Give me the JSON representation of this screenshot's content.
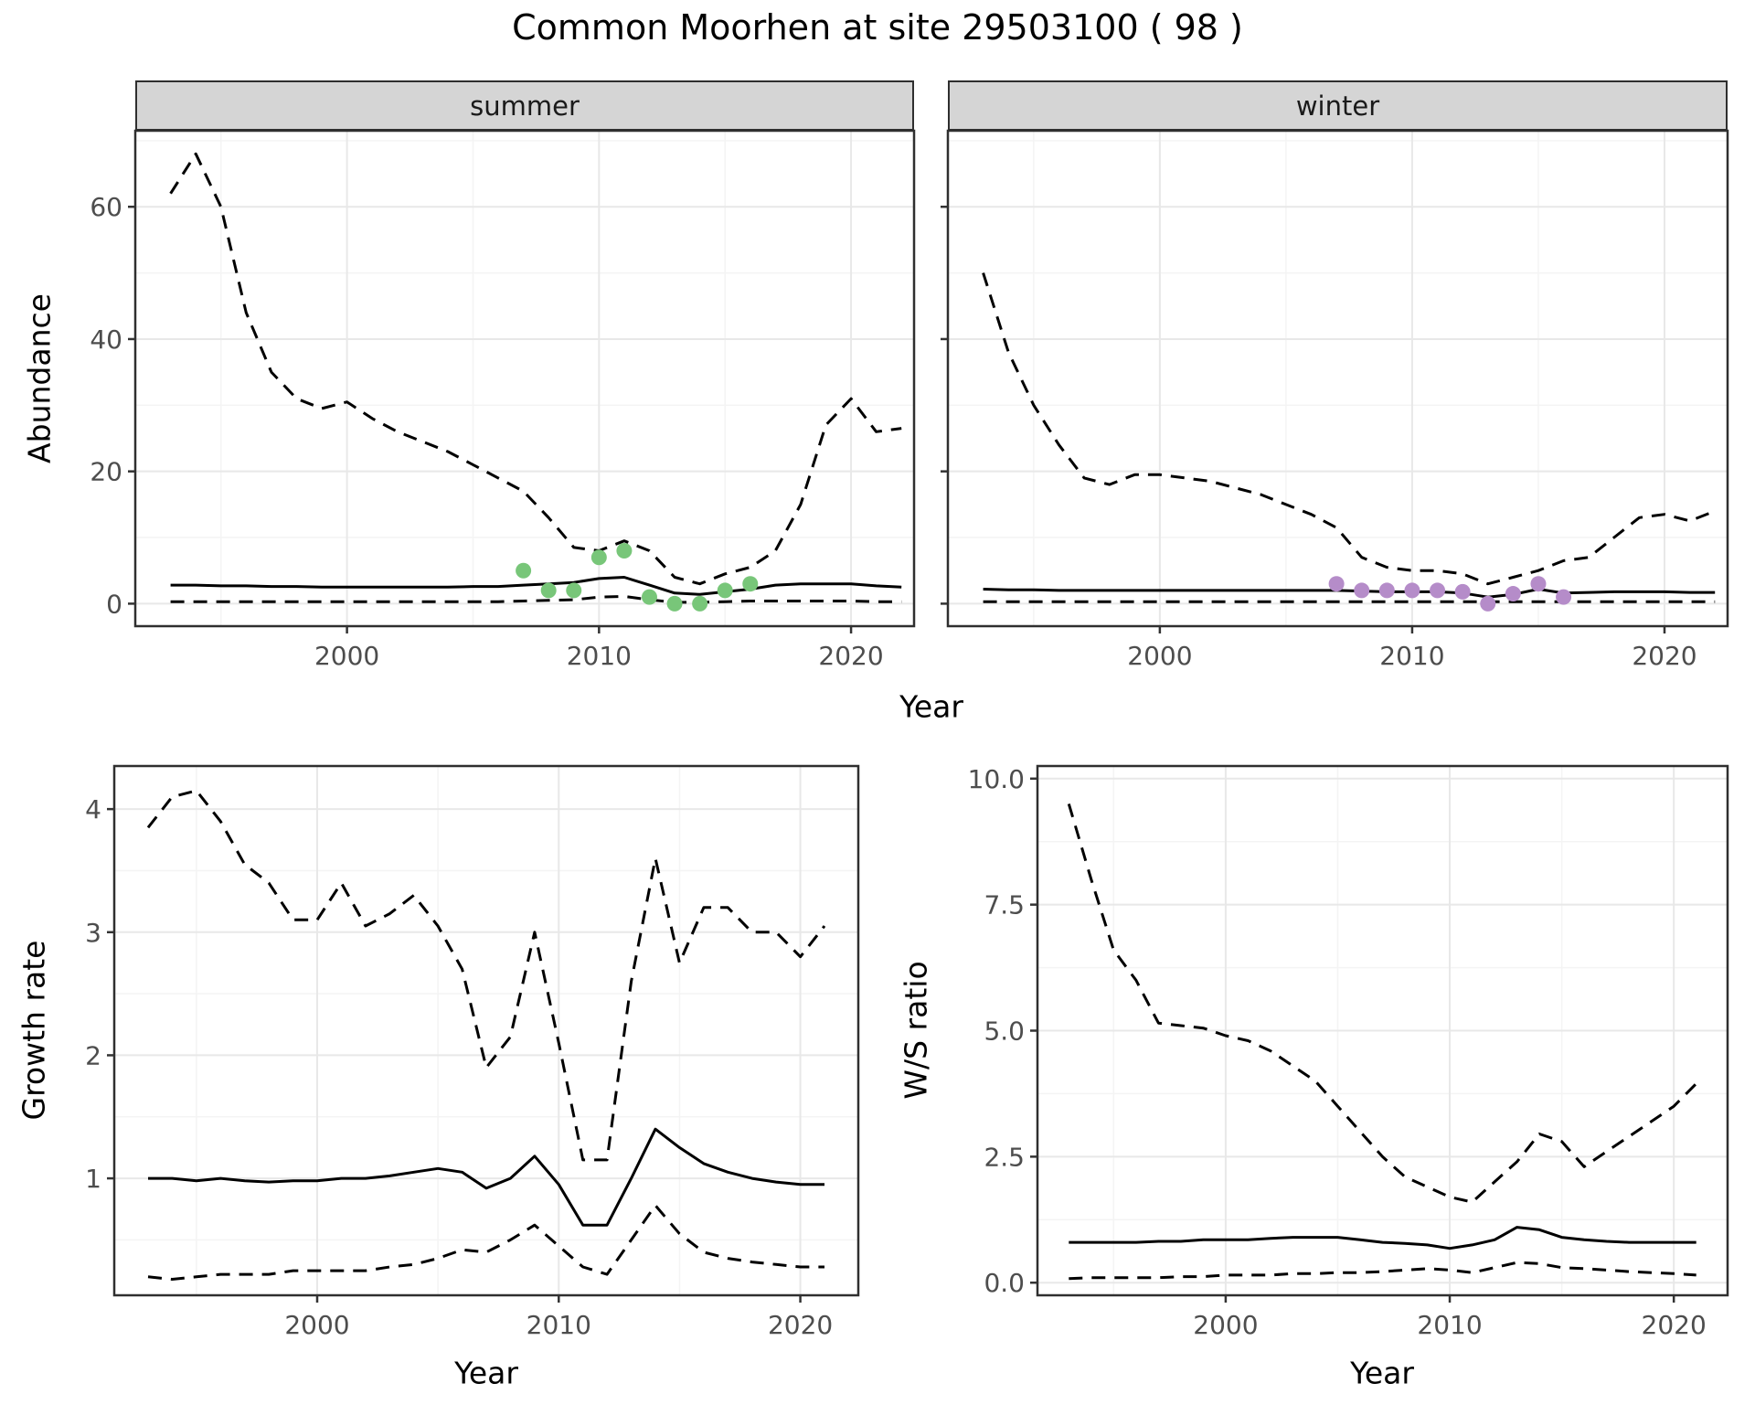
{
  "title": "Common Moorhen at site 29503100 ( 98 )",
  "facets": {
    "summer": "summer",
    "winter": "winter"
  },
  "axes": {
    "top": {
      "x_label": "Year",
      "y_label": "Abundance"
    },
    "bottom_left": {
      "x_label": "Year",
      "y_label": "Growth rate"
    },
    "bottom_right": {
      "x_label": "Year",
      "y_label": "W/S ratio"
    }
  },
  "style": {
    "line": "#000000",
    "grid_major": "#e8e8e8",
    "grid_minor": "#f4f4f4",
    "strip_fill": "#d5d5d5",
    "panel_border": "#2f2f2f",
    "summer_points": "#78c679",
    "winter_points": "#b58cc9"
  },
  "chart_data": [
    {
      "id": "abundance-summer",
      "type": "line",
      "facet": "summer",
      "xlabel": "Year",
      "ylabel": "Abundance",
      "xlim": [
        1991.6,
        2022.5
      ],
      "ylim": [
        -3.4,
        71.5
      ],
      "xticks": [
        2000,
        2010,
        2020
      ],
      "yticks": [
        0,
        20,
        40,
        60
      ],
      "xminor": [
        1995,
        2005,
        2015
      ],
      "yminor": [
        10,
        30,
        50,
        70
      ],
      "years": [
        1993,
        1994,
        1995,
        1996,
        1997,
        1998,
        1999,
        2000,
        2001,
        2002,
        2003,
        2004,
        2005,
        2006,
        2007,
        2008,
        2009,
        2010,
        2011,
        2012,
        2013,
        2014,
        2015,
        2016,
        2017,
        2018,
        2019,
        2020,
        2021,
        2022
      ],
      "series": [
        {
          "name": "upper-ci",
          "style": "dashed",
          "y": [
            62,
            68,
            60,
            44,
            35,
            31,
            29.5,
            30.5,
            28,
            26,
            24.5,
            23,
            21,
            19,
            17,
            13,
            8.5,
            8,
            9.5,
            8,
            4,
            3,
            4.5,
            5.5,
            8,
            15,
            27,
            31,
            26,
            26.5
          ]
        },
        {
          "name": "mean",
          "style": "solid",
          "y": [
            2.8,
            2.8,
            2.7,
            2.7,
            2.6,
            2.6,
            2.5,
            2.5,
            2.5,
            2.5,
            2.5,
            2.5,
            2.6,
            2.6,
            2.8,
            3.0,
            3.2,
            3.8,
            4.0,
            2.8,
            1.6,
            1.4,
            1.8,
            2.2,
            2.8,
            3.0,
            3.0,
            3.0,
            2.7,
            2.5
          ]
        },
        {
          "name": "lower-ci",
          "style": "dashed",
          "y": [
            0.3,
            0.3,
            0.3,
            0.3,
            0.3,
            0.3,
            0.3,
            0.3,
            0.3,
            0.3,
            0.3,
            0.3,
            0.3,
            0.3,
            0.4,
            0.5,
            0.6,
            1.0,
            1.1,
            0.6,
            0.2,
            0.2,
            0.3,
            0.4,
            0.4,
            0.4,
            0.4,
            0.4,
            0.3,
            0.3
          ]
        },
        {
          "name": "observations",
          "type": "scatter",
          "color": "#78c679",
          "x": [
            2007,
            2008,
            2009,
            2010,
            2011,
            2012,
            2013,
            2014,
            2015,
            2016
          ],
          "y": [
            5,
            2,
            2,
            7,
            8,
            1,
            0,
            0,
            2,
            3
          ]
        }
      ]
    },
    {
      "id": "abundance-winter",
      "type": "line",
      "facet": "winter",
      "xlabel": "Year",
      "ylabel": "Abundance",
      "show_ytick_labels": false,
      "xlim": [
        1991.6,
        2022.5
      ],
      "ylim": [
        -3.4,
        71.5
      ],
      "xticks": [
        2000,
        2010,
        2020
      ],
      "yticks": [
        0,
        20,
        40,
        60
      ],
      "xminor": [
        1995,
        2005,
        2015
      ],
      "yminor": [
        10,
        30,
        50,
        70
      ],
      "years": [
        1993,
        1994,
        1995,
        1996,
        1997,
        1998,
        1999,
        2000,
        2001,
        2002,
        2003,
        2004,
        2005,
        2006,
        2007,
        2008,
        2009,
        2010,
        2011,
        2012,
        2013,
        2014,
        2015,
        2016,
        2017,
        2018,
        2019,
        2020,
        2021,
        2022
      ],
      "series": [
        {
          "name": "upper-ci",
          "style": "dashed",
          "y": [
            50,
            38,
            30,
            24,
            19,
            18,
            19.5,
            19.5,
            19,
            18.5,
            17.5,
            16.5,
            15,
            13.5,
            11.5,
            7,
            5.5,
            5,
            5,
            4.5,
            3,
            4,
            5,
            6.5,
            7,
            10,
            13,
            13.5,
            12.5,
            14
          ]
        },
        {
          "name": "mean",
          "style": "solid",
          "y": [
            2.2,
            2.1,
            2.1,
            2.0,
            2.0,
            2.0,
            2.0,
            2.0,
            2.0,
            2.0,
            2.0,
            2.0,
            2.0,
            2.0,
            2.0,
            1.9,
            1.8,
            1.8,
            1.8,
            1.6,
            1.0,
            1.4,
            2.2,
            1.6,
            1.7,
            1.8,
            1.8,
            1.8,
            1.7,
            1.7
          ]
        },
        {
          "name": "lower-ci",
          "style": "dashed",
          "y": [
            0.3,
            0.3,
            0.3,
            0.3,
            0.3,
            0.3,
            0.3,
            0.3,
            0.3,
            0.3,
            0.3,
            0.3,
            0.3,
            0.3,
            0.3,
            0.3,
            0.3,
            0.3,
            0.3,
            0.3,
            0.3,
            0.3,
            0.3,
            0.3,
            0.3,
            0.3,
            0.3,
            0.3,
            0.3,
            0.3
          ]
        },
        {
          "name": "observations",
          "type": "scatter",
          "color": "#b58cc9",
          "x": [
            2007,
            2008,
            2009,
            2010,
            2011,
            2012,
            2013,
            2014,
            2015,
            2016
          ],
          "y": [
            3,
            2,
            2,
            2,
            2,
            1.8,
            0,
            1.5,
            3,
            1
          ]
        }
      ]
    },
    {
      "id": "growth-rate",
      "type": "line",
      "xlabel": "Year",
      "ylabel": "Growth rate",
      "xlim": [
        1991.6,
        2022.4
      ],
      "ylim": [
        0.05,
        4.35
      ],
      "xticks": [
        2000,
        2010,
        2020
      ],
      "yticks": [
        1,
        2,
        3,
        4
      ],
      "xminor": [
        1995,
        2005,
        2015
      ],
      "yminor": [
        0.5,
        1.5,
        2.5,
        3.5
      ],
      "years": [
        1993,
        1994,
        1995,
        1996,
        1997,
        1998,
        1999,
        2000,
        2001,
        2002,
        2003,
        2004,
        2005,
        2006,
        2007,
        2008,
        2009,
        2010,
        2011,
        2012,
        2013,
        2014,
        2015,
        2016,
        2017,
        2018,
        2019,
        2020,
        2021
      ],
      "series": [
        {
          "name": "upper-ci",
          "style": "dashed",
          "y": [
            3.85,
            4.1,
            4.15,
            3.9,
            3.55,
            3.4,
            3.1,
            3.1,
            3.4,
            3.05,
            3.15,
            3.3,
            3.05,
            2.7,
            1.9,
            2.15,
            3.0,
            2.1,
            1.15,
            1.15,
            2.6,
            3.6,
            2.75,
            3.2,
            3.2,
            3.0,
            3.0,
            2.8,
            3.05
          ]
        },
        {
          "name": "mean",
          "style": "solid",
          "y": [
            1.0,
            1.0,
            0.98,
            1.0,
            0.98,
            0.97,
            0.98,
            0.98,
            1.0,
            1.0,
            1.02,
            1.05,
            1.08,
            1.05,
            0.92,
            1.0,
            1.18,
            0.95,
            0.62,
            0.62,
            1.0,
            1.4,
            1.25,
            1.12,
            1.05,
            1.0,
            0.97,
            0.95,
            0.95
          ]
        },
        {
          "name": "lower-ci",
          "style": "dashed",
          "y": [
            0.2,
            0.18,
            0.2,
            0.22,
            0.22,
            0.22,
            0.25,
            0.25,
            0.25,
            0.25,
            0.28,
            0.3,
            0.35,
            0.42,
            0.4,
            0.5,
            0.62,
            0.45,
            0.28,
            0.22,
            0.5,
            0.78,
            0.55,
            0.4,
            0.35,
            0.32,
            0.3,
            0.28,
            0.28
          ]
        }
      ]
    },
    {
      "id": "ws-ratio",
      "type": "line",
      "xlabel": "Year",
      "ylabel": "W/S ratio",
      "xlim": [
        1991.6,
        2022.4
      ],
      "ylim": [
        -0.25,
        10.25
      ],
      "xticks": [
        2000,
        2010,
        2020
      ],
      "yticks": [
        0,
        2.5,
        5,
        7.5,
        10
      ],
      "ytick_labels": [
        "0.0",
        "2.5",
        "5.0",
        "7.5",
        "10.0"
      ],
      "xminor": [
        1995,
        2005,
        2015
      ],
      "yminor": [
        1.25,
        3.75,
        6.25,
        8.75
      ],
      "years": [
        1993,
        1994,
        1995,
        1996,
        1997,
        1998,
        1999,
        2000,
        2001,
        2002,
        2003,
        2004,
        2005,
        2006,
        2007,
        2008,
        2009,
        2010,
        2011,
        2012,
        2013,
        2014,
        2015,
        2016,
        2017,
        2018,
        2019,
        2020,
        2021
      ],
      "series": [
        {
          "name": "upper-ci",
          "style": "dashed",
          "y": [
            9.5,
            8.0,
            6.6,
            6.0,
            5.15,
            5.1,
            5.05,
            4.9,
            4.8,
            4.6,
            4.3,
            4.0,
            3.5,
            3.0,
            2.5,
            2.1,
            1.9,
            1.7,
            1.6,
            2.0,
            2.4,
            2.95,
            2.8,
            2.3,
            2.6,
            2.9,
            3.2,
            3.5,
            3.95
          ]
        },
        {
          "name": "mean",
          "style": "solid",
          "y": [
            0.8,
            0.8,
            0.8,
            0.8,
            0.82,
            0.82,
            0.85,
            0.85,
            0.85,
            0.88,
            0.9,
            0.9,
            0.9,
            0.85,
            0.8,
            0.78,
            0.75,
            0.68,
            0.75,
            0.85,
            1.1,
            1.05,
            0.9,
            0.85,
            0.82,
            0.8,
            0.8,
            0.8,
            0.8
          ]
        },
        {
          "name": "lower-ci",
          "style": "dashed",
          "y": [
            0.08,
            0.1,
            0.1,
            0.1,
            0.1,
            0.12,
            0.12,
            0.15,
            0.15,
            0.15,
            0.18,
            0.18,
            0.2,
            0.2,
            0.22,
            0.25,
            0.28,
            0.25,
            0.2,
            0.3,
            0.4,
            0.38,
            0.3,
            0.28,
            0.25,
            0.22,
            0.2,
            0.18,
            0.15
          ]
        }
      ]
    }
  ]
}
